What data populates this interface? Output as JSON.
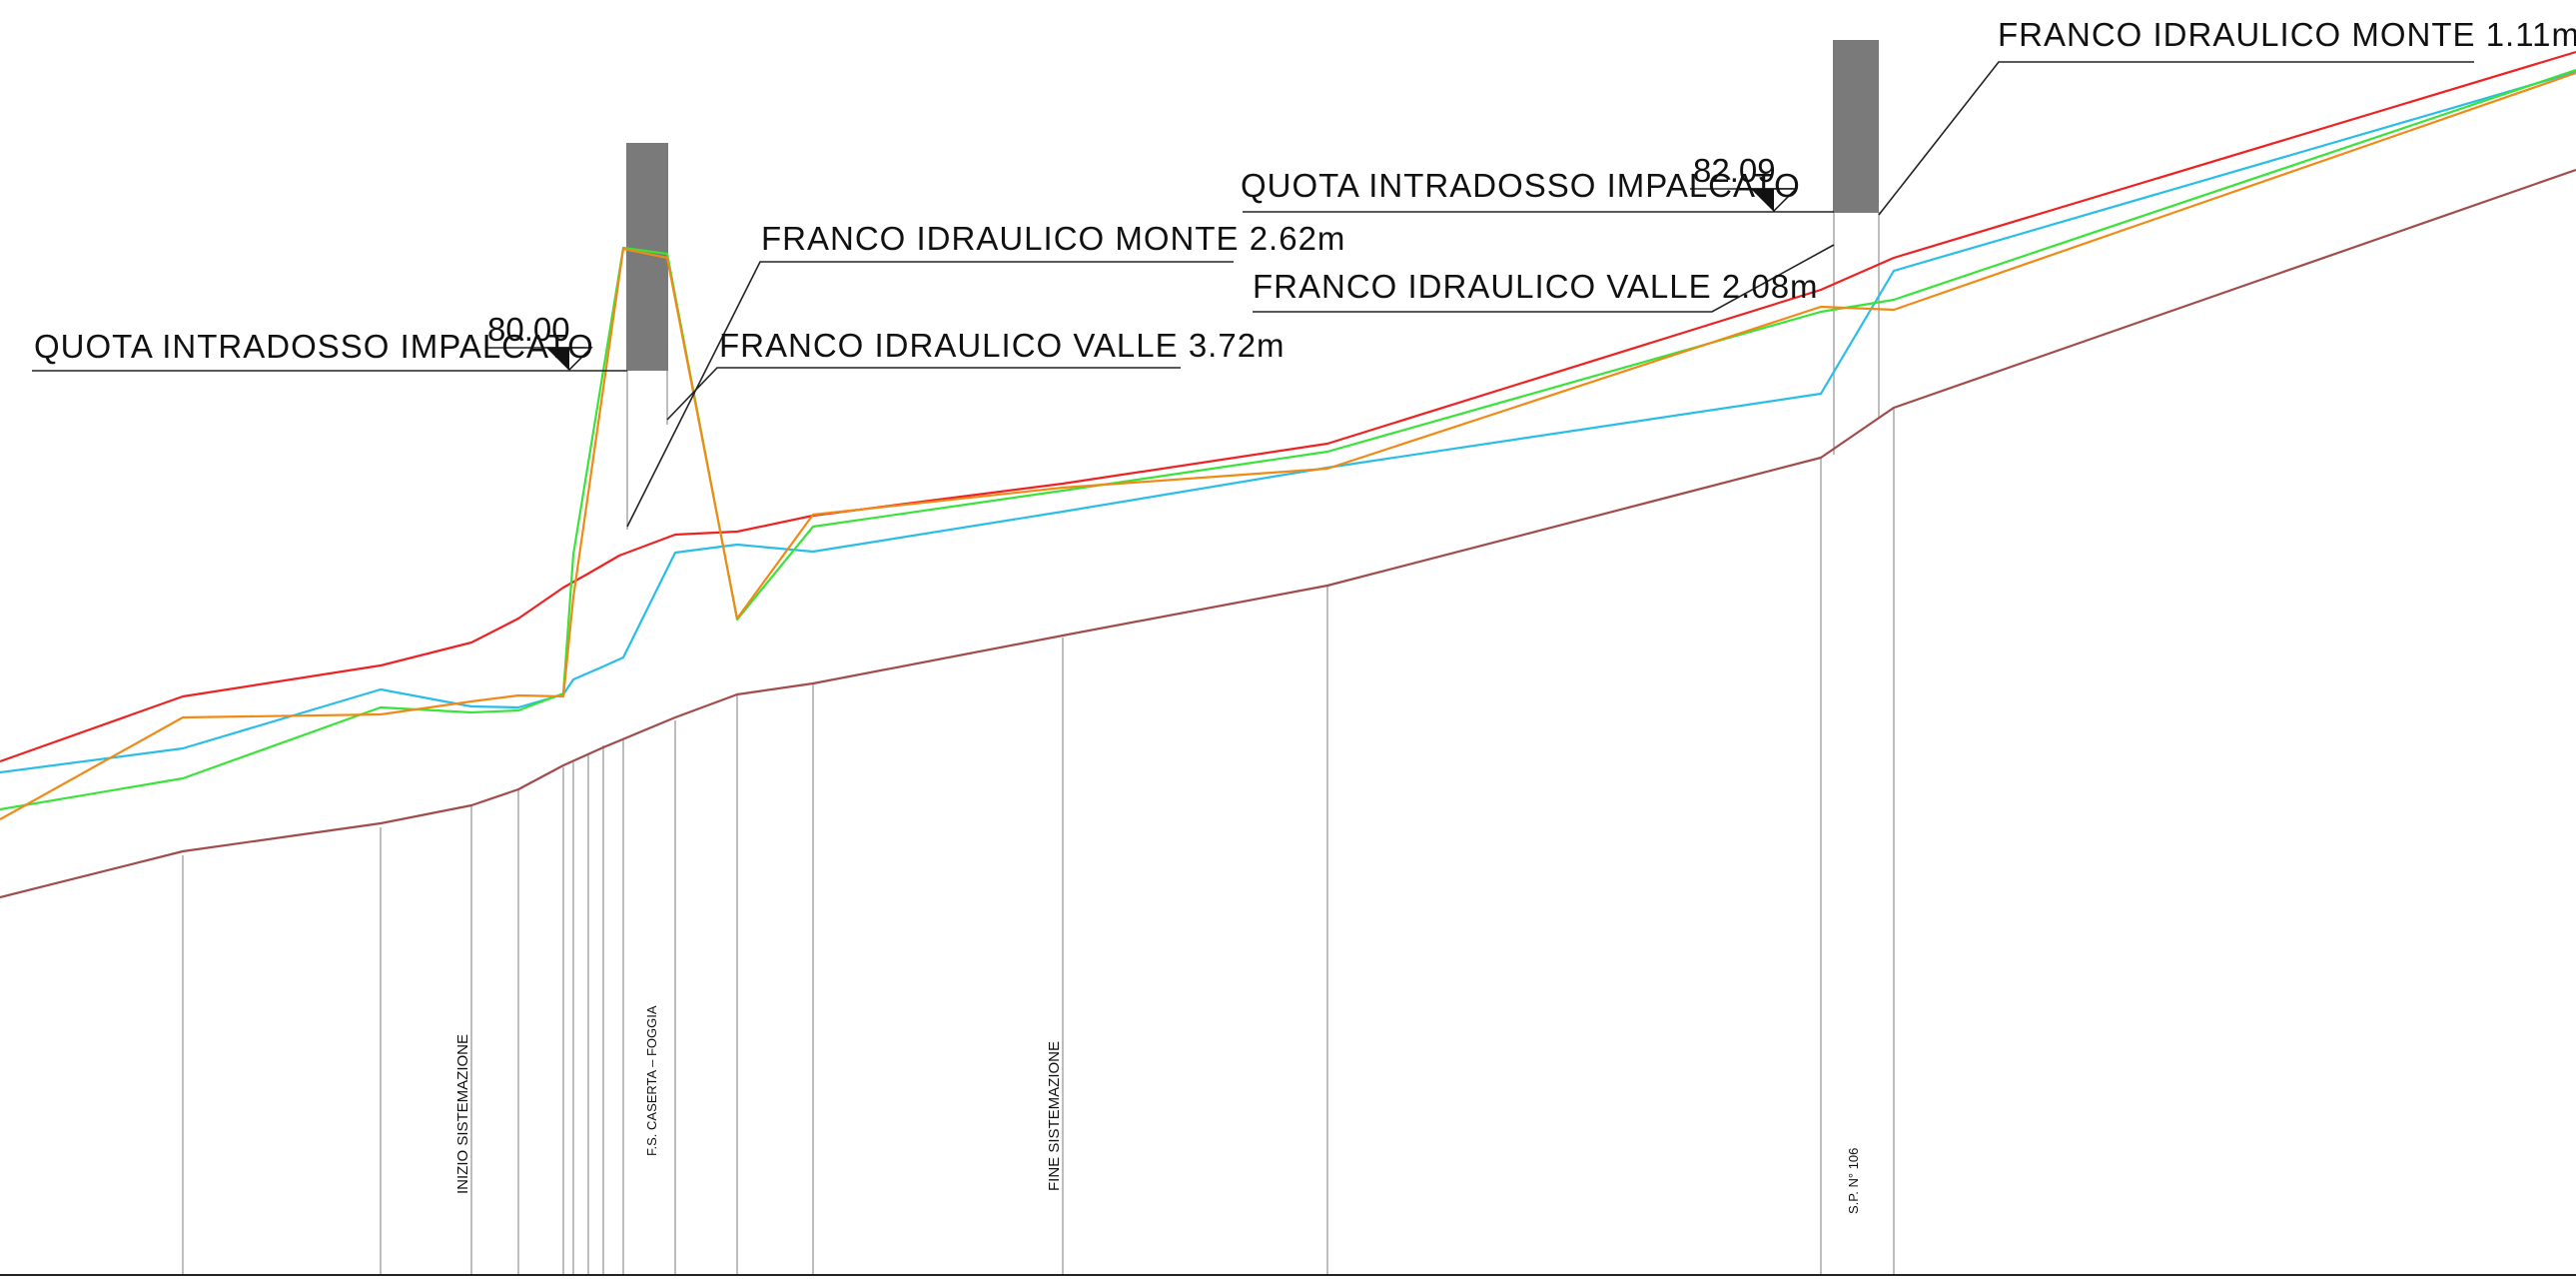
{
  "colors": {
    "background": "#ffffff",
    "pier": "#7a7a7a",
    "leader": "#222222",
    "section_line": "#9a9a9a",
    "profile_red": "#ee2222",
    "profile_cyan": "#29bde8",
    "profile_green": "#39e339",
    "profile_orange": "#f08a16",
    "profile_brown": "#a14b4b"
  },
  "bridge_1": {
    "deck_label": "QUOTA INTRADOSSO IMPALCATO",
    "deck_elevation": "80.00",
    "franco_monte": "FRANCO IDRAULICO MONTE 2.62m",
    "franco_valle": "FRANCO IDRAULICO VALLE 3.72m"
  },
  "bridge_2": {
    "deck_label": "QUOTA INTRADOSSO IMPALCATO",
    "deck_elevation": "82.09",
    "franco_monte": "FRANCO IDRAULICO MONTE 1.11m",
    "franco_valle": "FRANCO IDRAULICO VALLE 2.08m"
  },
  "section_labels": {
    "inizio": "INIZIO SISTEMAZIONE",
    "ferrovia": "F.S.  CASERTA  –  FOGGIA",
    "fine": "FINE SISTEMAZIONE",
    "strada": "S.P.  N°  106"
  }
}
